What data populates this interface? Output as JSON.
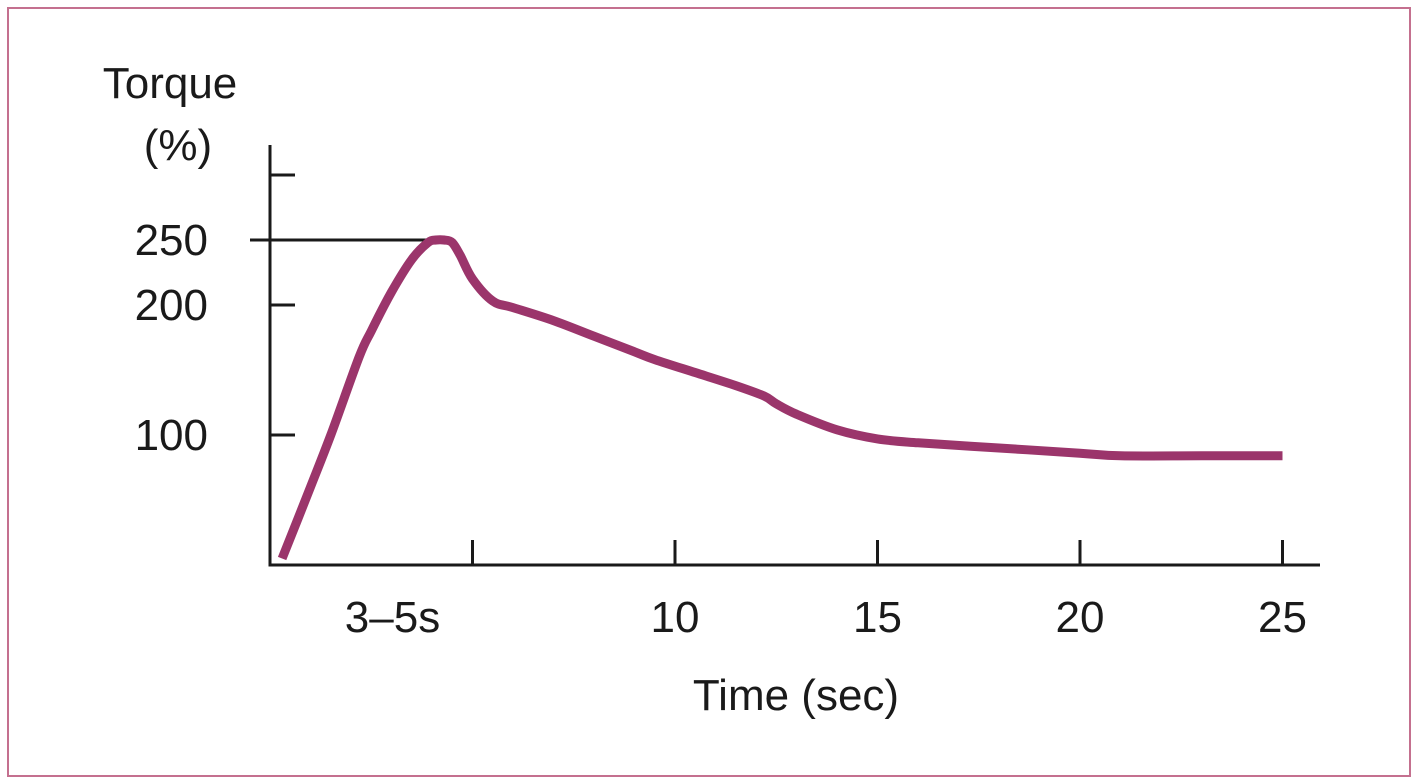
{
  "chart_data": {
    "type": "line",
    "title": "",
    "ylabel_line1": "Torque",
    "ylabel_line2": "(%)",
    "xlabel": "Time (sec)",
    "xlim": [
      0,
      25
    ],
    "ylim": [
      0,
      300
    ],
    "x_ticks": [
      5,
      10,
      15,
      20,
      25
    ],
    "x_tick_labels": [
      "3–5s",
      "10",
      "15",
      "20",
      "25"
    ],
    "y_ticks": [
      100,
      200,
      250,
      300
    ],
    "y_tick_labels": [
      "100",
      "200",
      "250",
      ""
    ],
    "reference_line": {
      "y": 250,
      "x_end": 4.25
    },
    "series": [
      {
        "color": "#9b356b",
        "x": [
          0.3,
          1.0,
          1.5,
          2.2,
          2.5,
          3.0,
          3.5,
          3.9,
          4.1,
          4.3,
          4.5,
          4.7,
          5.0,
          5.5,
          6.0,
          7.0,
          8.0,
          9.0,
          9.5,
          10.5,
          11.5,
          12.2,
          12.5,
          13.0,
          14.0,
          15.0,
          16.0,
          18.0,
          20.0,
          21.0,
          23.0,
          25.0
        ],
        "y": [
          5,
          60,
          100,
          160,
          180,
          210,
          235,
          248,
          250,
          250,
          248,
          238,
          220,
          203,
          198,
          188,
          176,
          164,
          158,
          148,
          138,
          130,
          124,
          116,
          104,
          97,
          94,
          90,
          86,
          84,
          84,
          84
        ]
      }
    ]
  }
}
